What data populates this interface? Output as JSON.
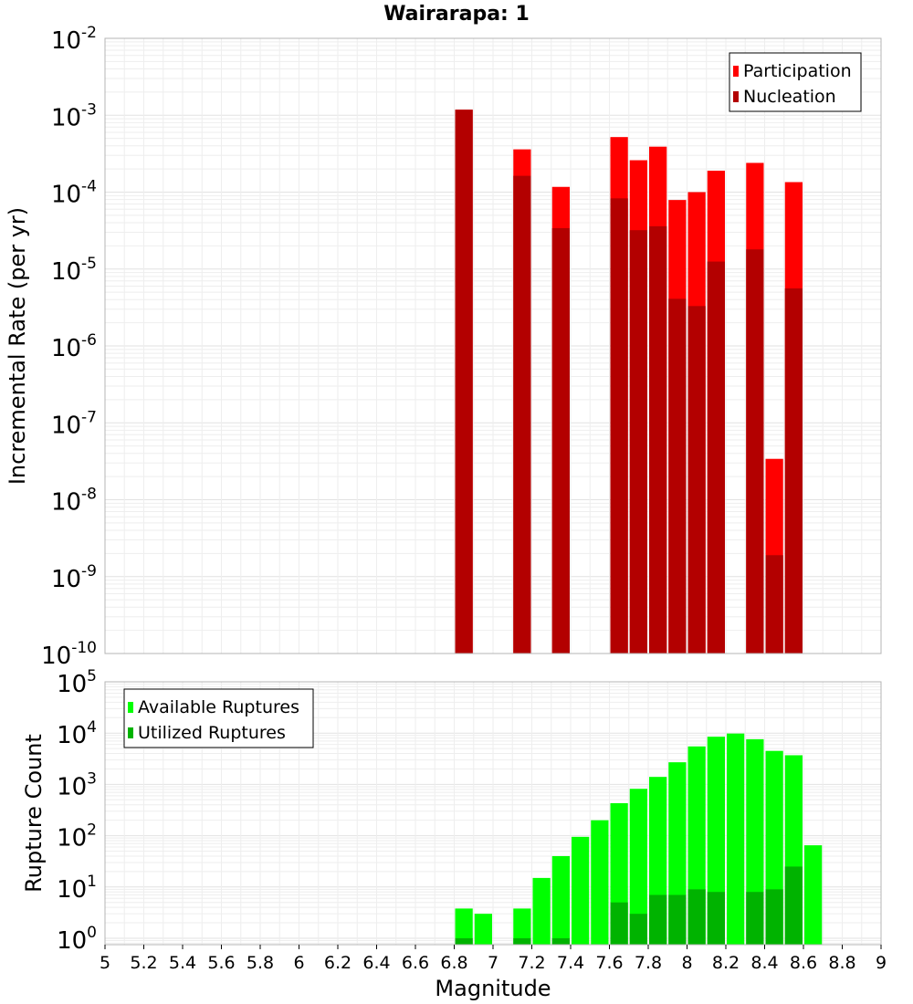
{
  "title": "Wairarapa: 1",
  "chart_data": [
    {
      "type": "bar",
      "ylabel": "Incremental Rate (per yr)",
      "yscale": "log",
      "xlim": [
        5,
        9
      ],
      "ylim": [
        1e-10,
        0.01
      ],
      "y_tick_exponents": [
        "-2",
        "-3",
        "-4",
        "-5",
        "-6",
        "-7",
        "-8",
        "-9",
        "-10"
      ],
      "grid": true,
      "legend_position": "top-right",
      "legend": [
        "Participation",
        "Nucleation"
      ],
      "colors": {
        "participation": "#ff0000",
        "nucleation": "#b30000"
      },
      "x": [
        6.85,
        7.15,
        7.35,
        7.65,
        7.75,
        7.85,
        7.95,
        8.05,
        8.15,
        8.35,
        8.45,
        8.55
      ],
      "series": [
        {
          "name": "Participation",
          "values": [
            0.00118,
            0.00036,
            0.000117,
            0.00052,
            0.00026,
            0.00039,
            7.9e-05,
            0.0001,
            0.00019,
            0.00024,
            3.4e-08,
            0.000135
          ]
        },
        {
          "name": "Nucleation",
          "values": [
            0.00118,
            0.000163,
            3.4e-05,
            8.3e-05,
            3.2e-05,
            3.6e-05,
            4.1e-06,
            3.3e-06,
            1.25e-05,
            1.8e-05,
            1.9e-09,
            5.6e-06
          ]
        }
      ]
    },
    {
      "type": "bar",
      "xlabel": "Magnitude",
      "ylabel": "Rupture Count",
      "yscale": "log",
      "xlim": [
        5,
        9
      ],
      "ylim": [
        0.75,
        100000
      ],
      "x_ticks": [
        "5",
        "5.2",
        "5.4",
        "5.6",
        "5.8",
        "6",
        "6.2",
        "6.4",
        "6.6",
        "6.8",
        "7",
        "7.2",
        "7.4",
        "7.6",
        "7.8",
        "8",
        "8.2",
        "8.4",
        "8.6",
        "8.8",
        "9"
      ],
      "y_tick_exponents": [
        "5",
        "4",
        "3",
        "2",
        "1",
        "0"
      ],
      "grid": true,
      "legend_position": "top-left",
      "legend": [
        "Available Ruptures",
        "Utilized Ruptures"
      ],
      "colors": {
        "available": "#00ff00",
        "utilized": "#00b300"
      },
      "x": [
        6.85,
        6.95,
        7.15,
        7.25,
        7.35,
        7.45,
        7.55,
        7.65,
        7.75,
        7.85,
        7.95,
        8.05,
        8.15,
        8.25,
        8.35,
        8.45,
        8.55,
        8.65
      ],
      "series": [
        {
          "name": "Available Ruptures",
          "values": [
            3.8,
            3,
            3.8,
            15,
            40,
            95,
            200,
            430,
            820,
            1400,
            2700,
            5500,
            8500,
            9800,
            7600,
            4500,
            3700,
            65
          ]
        },
        {
          "name": "Utilized Ruptures",
          "values": [
            1,
            null,
            1,
            null,
            1,
            null,
            null,
            5,
            3,
            7,
            7,
            9,
            8,
            null,
            8,
            9,
            25,
            null
          ]
        }
      ]
    }
  ]
}
